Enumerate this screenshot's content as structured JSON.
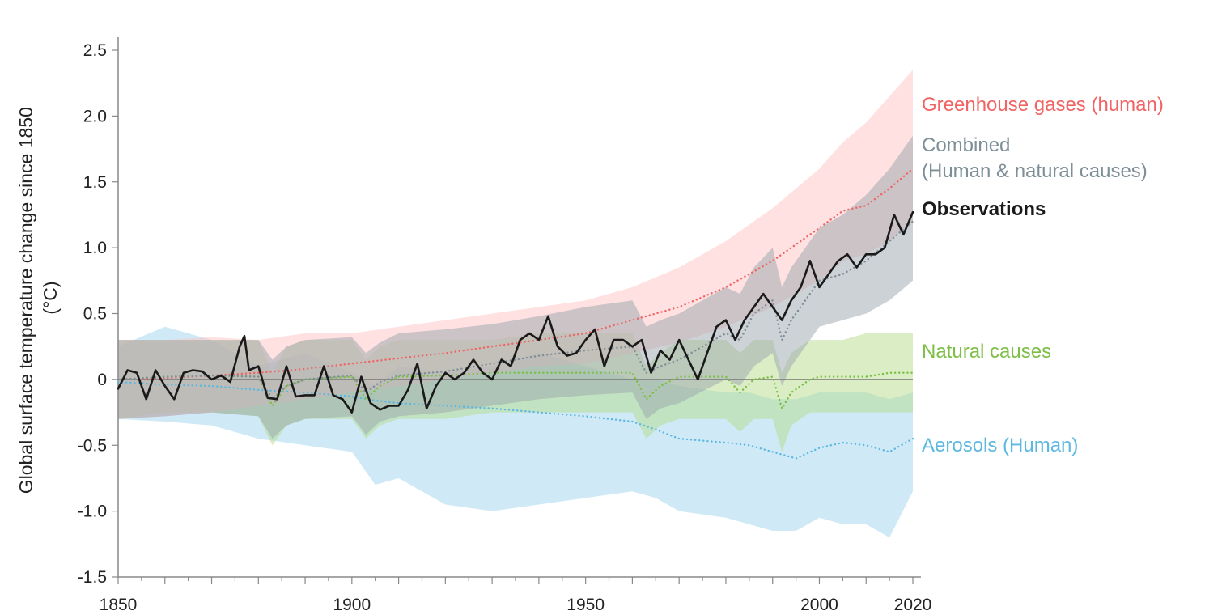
{
  "chart_data": {
    "type": "line",
    "title": "",
    "xlabel": "",
    "ylabel_lines": [
      "Global surface temperature change since 1850",
      "(°C)"
    ],
    "xlim": [
      1850,
      2020
    ],
    "ylim": [
      -1.5,
      2.5
    ],
    "x_ticks": [
      1850,
      1900,
      1950,
      2000,
      2020
    ],
    "y_ticks": [
      {
        "value": 2.5,
        "label": "2.5"
      },
      {
        "value": 2.0,
        "label": "2.0"
      },
      {
        "value": 1.5,
        "label": "1.5"
      },
      {
        "value": 1.0,
        "label": "1.0"
      },
      {
        "value": 0.5,
        "label": "0.5"
      },
      {
        "value": 0,
        "label": "0"
      },
      {
        "value": -0.5,
        "label": "-0.5"
      },
      {
        "value": -1.0,
        "label": "-1.0"
      },
      {
        "value": -1.5,
        "label": "-1.5"
      }
    ],
    "grid": false,
    "zero_line": true,
    "series": [
      {
        "key": "aerosols",
        "name": "Aerosols (Human)",
        "color": "#5cb8e0",
        "band_color": "#9fd5ee",
        "style": "dotted",
        "x": [
          1850,
          1860,
          1870,
          1880,
          1890,
          1900,
          1905,
          1910,
          1920,
          1930,
          1940,
          1950,
          1960,
          1965,
          1970,
          1980,
          1985,
          1990,
          1995,
          2000,
          2005,
          2010,
          2015,
          2020
        ],
        "values": [
          -0.02,
          -0.04,
          -0.05,
          -0.08,
          -0.1,
          -0.13,
          -0.16,
          -0.18,
          -0.2,
          -0.22,
          -0.25,
          -0.28,
          -0.32,
          -0.38,
          -0.45,
          -0.48,
          -0.5,
          -0.55,
          -0.6,
          -0.52,
          -0.48,
          -0.5,
          -0.55,
          -0.45
        ],
        "lower": [
          -0.3,
          -0.32,
          -0.35,
          -0.45,
          -0.5,
          -0.55,
          -0.8,
          -0.75,
          -0.95,
          -1.0,
          -0.95,
          -0.9,
          -0.85,
          -0.9,
          -1.0,
          -1.05,
          -1.1,
          -1.15,
          -1.15,
          -1.05,
          -1.1,
          -1.1,
          -1.2,
          -0.85
        ],
        "upper": [
          0.25,
          0.4,
          0.3,
          0.1,
          0.2,
          0.05,
          -0.05,
          0.1,
          0.05,
          0.1,
          0.2,
          0.1,
          0.0,
          0.0,
          -0.05,
          -0.1,
          -0.1,
          -0.15,
          -0.15,
          -0.1,
          -0.1,
          -0.1,
          -0.15,
          -0.1
        ]
      },
      {
        "key": "natural",
        "name": "Natural causes",
        "color": "#7dbf46",
        "band_color": "#b5dc8c",
        "style": "dotted",
        "x": [
          1850,
          1860,
          1870,
          1880,
          1883,
          1886,
          1890,
          1900,
          1903,
          1906,
          1910,
          1920,
          1930,
          1940,
          1950,
          1960,
          1963,
          1966,
          1970,
          1980,
          1983,
          1986,
          1990,
          1992,
          1994,
          1998,
          2000,
          2005,
          2010,
          2015,
          2020
        ],
        "values": [
          0.0,
          0.02,
          0.03,
          0.02,
          -0.2,
          -0.05,
          0.0,
          0.02,
          -0.15,
          -0.05,
          0.02,
          0.03,
          0.05,
          0.05,
          0.05,
          0.05,
          -0.15,
          -0.05,
          0.02,
          0.02,
          -0.1,
          0.0,
          0.02,
          -0.22,
          -0.1,
          0.0,
          0.02,
          0.02,
          0.02,
          0.05,
          0.05
        ],
        "lower": [
          -0.3,
          -0.25,
          -0.25,
          -0.28,
          -0.5,
          -0.35,
          -0.3,
          -0.3,
          -0.45,
          -0.35,
          -0.3,
          -0.3,
          -0.25,
          -0.25,
          -0.25,
          -0.25,
          -0.45,
          -0.35,
          -0.3,
          -0.3,
          -0.4,
          -0.3,
          -0.3,
          -0.55,
          -0.35,
          -0.25,
          -0.25,
          -0.25,
          -0.25,
          -0.25,
          -0.25
        ],
        "upper": [
          0.3,
          0.3,
          0.3,
          0.3,
          0.05,
          0.25,
          0.3,
          0.3,
          0.15,
          0.25,
          0.3,
          0.3,
          0.3,
          0.35,
          0.35,
          0.35,
          0.1,
          0.2,
          0.3,
          0.3,
          0.2,
          0.3,
          0.3,
          0.05,
          0.2,
          0.3,
          0.3,
          0.3,
          0.35,
          0.35,
          0.35
        ]
      },
      {
        "key": "greenhouse",
        "name": "Greenhouse gases (human)",
        "color": "#f06464",
        "band_color": "#ffc4c4",
        "style": "dotted",
        "x": [
          1850,
          1860,
          1870,
          1880,
          1890,
          1900,
          1910,
          1920,
          1930,
          1940,
          1950,
          1960,
          1970,
          1980,
          1990,
          2000,
          2005,
          2010,
          2015,
          2020
        ],
        "values": [
          0.0,
          0.01,
          0.03,
          0.05,
          0.08,
          0.12,
          0.16,
          0.2,
          0.25,
          0.3,
          0.35,
          0.45,
          0.55,
          0.7,
          0.9,
          1.15,
          1.28,
          1.32,
          1.45,
          1.6
        ],
        "lower": [
          -0.3,
          -0.28,
          -0.25,
          -0.2,
          -0.15,
          -0.1,
          -0.05,
          0.0,
          0.05,
          0.1,
          0.12,
          0.2,
          0.28,
          0.4,
          0.55,
          0.75,
          0.9,
          0.95,
          1.05,
          1.2
        ],
        "upper": [
          0.3,
          0.3,
          0.32,
          0.3,
          0.35,
          0.35,
          0.4,
          0.45,
          0.5,
          0.55,
          0.6,
          0.7,
          0.85,
          1.05,
          1.3,
          1.6,
          1.8,
          1.95,
          2.15,
          2.35
        ]
      },
      {
        "key": "combined",
        "name": "Combined",
        "name_line2": "(Human & natural causes)",
        "color": "#7e8f98",
        "band_color": "#9aa6ad",
        "style": "dotted",
        "x": [
          1850,
          1860,
          1870,
          1880,
          1883,
          1886,
          1890,
          1900,
          1903,
          1906,
          1910,
          1920,
          1930,
          1940,
          1950,
          1960,
          1963,
          1966,
          1970,
          1980,
          1983,
          1986,
          1990,
          1992,
          1994,
          1998,
          2000,
          2005,
          2010,
          2015,
          2020
        ],
        "values": [
          0.0,
          0.02,
          0.03,
          0.02,
          -0.15,
          -0.05,
          0.0,
          0.03,
          -0.1,
          -0.02,
          0.03,
          0.06,
          0.12,
          0.18,
          0.22,
          0.25,
          0.05,
          0.1,
          0.15,
          0.35,
          0.3,
          0.5,
          0.6,
          0.3,
          0.45,
          0.65,
          0.75,
          0.8,
          0.9,
          1.05,
          1.2
        ],
        "lower": [
          -0.3,
          -0.28,
          -0.25,
          -0.28,
          -0.45,
          -0.35,
          -0.3,
          -0.28,
          -0.42,
          -0.32,
          -0.28,
          -0.25,
          -0.2,
          -0.15,
          -0.12,
          -0.1,
          -0.3,
          -0.22,
          -0.18,
          0.0,
          -0.05,
          0.1,
          0.2,
          -0.05,
          0.1,
          0.3,
          0.4,
          0.45,
          0.5,
          0.6,
          0.75
        ],
        "upper": [
          0.3,
          0.3,
          0.3,
          0.3,
          0.15,
          0.25,
          0.3,
          0.32,
          0.2,
          0.28,
          0.35,
          0.38,
          0.42,
          0.48,
          0.55,
          0.6,
          0.4,
          0.45,
          0.5,
          0.7,
          0.65,
          0.85,
          1.0,
          0.7,
          0.85,
          1.05,
          1.15,
          1.25,
          1.4,
          1.6,
          1.85
        ]
      },
      {
        "key": "observations",
        "name": "Observations",
        "color": "#1a1a1a",
        "style": "solid",
        "x": [
          1850,
          1852,
          1854,
          1856,
          1858,
          1860,
          1862,
          1864,
          1866,
          1868,
          1870,
          1872,
          1874,
          1876,
          1877,
          1878,
          1880,
          1882,
          1884,
          1886,
          1888,
          1890,
          1892,
          1894,
          1896,
          1898,
          1900,
          1902,
          1904,
          1906,
          1908,
          1910,
          1912,
          1914,
          1916,
          1918,
          1920,
          1922,
          1924,
          1926,
          1928,
          1930,
          1932,
          1934,
          1936,
          1938,
          1940,
          1942,
          1944,
          1946,
          1948,
          1950,
          1952,
          1954,
          1956,
          1958,
          1960,
          1962,
          1964,
          1966,
          1968,
          1970,
          1972,
          1974,
          1976,
          1978,
          1980,
          1982,
          1984,
          1986,
          1988,
          1990,
          1992,
          1994,
          1996,
          1998,
          2000,
          2002,
          2004,
          2006,
          2008,
          2010,
          2012,
          2014,
          2016,
          2018,
          2020
        ],
        "values": [
          -0.07,
          0.07,
          0.05,
          -0.15,
          0.07,
          -0.05,
          -0.15,
          0.05,
          0.07,
          0.06,
          0.0,
          0.03,
          -0.02,
          0.25,
          0.33,
          0.07,
          0.1,
          -0.14,
          -0.15,
          0.1,
          -0.13,
          -0.12,
          -0.12,
          0.1,
          -0.12,
          -0.15,
          -0.25,
          0.02,
          -0.18,
          -0.23,
          -0.2,
          -0.2,
          -0.08,
          0.12,
          -0.22,
          -0.05,
          0.05,
          0.0,
          0.05,
          0.15,
          0.05,
          0.0,
          0.15,
          0.1,
          0.3,
          0.35,
          0.3,
          0.48,
          0.25,
          0.18,
          0.2,
          0.3,
          0.38,
          0.1,
          0.3,
          0.3,
          0.25,
          0.3,
          0.05,
          0.22,
          0.15,
          0.3,
          0.15,
          0.0,
          0.2,
          0.4,
          0.45,
          0.3,
          0.45,
          0.55,
          0.65,
          0.55,
          0.45,
          0.6,
          0.7,
          0.9,
          0.7,
          0.8,
          0.9,
          0.95,
          0.85,
          0.95,
          0.95,
          1.0,
          1.25,
          1.1,
          1.27
        ]
      }
    ],
    "label_order": [
      "greenhouse",
      "combined",
      "observations",
      "natural",
      "aerosols"
    ]
  }
}
